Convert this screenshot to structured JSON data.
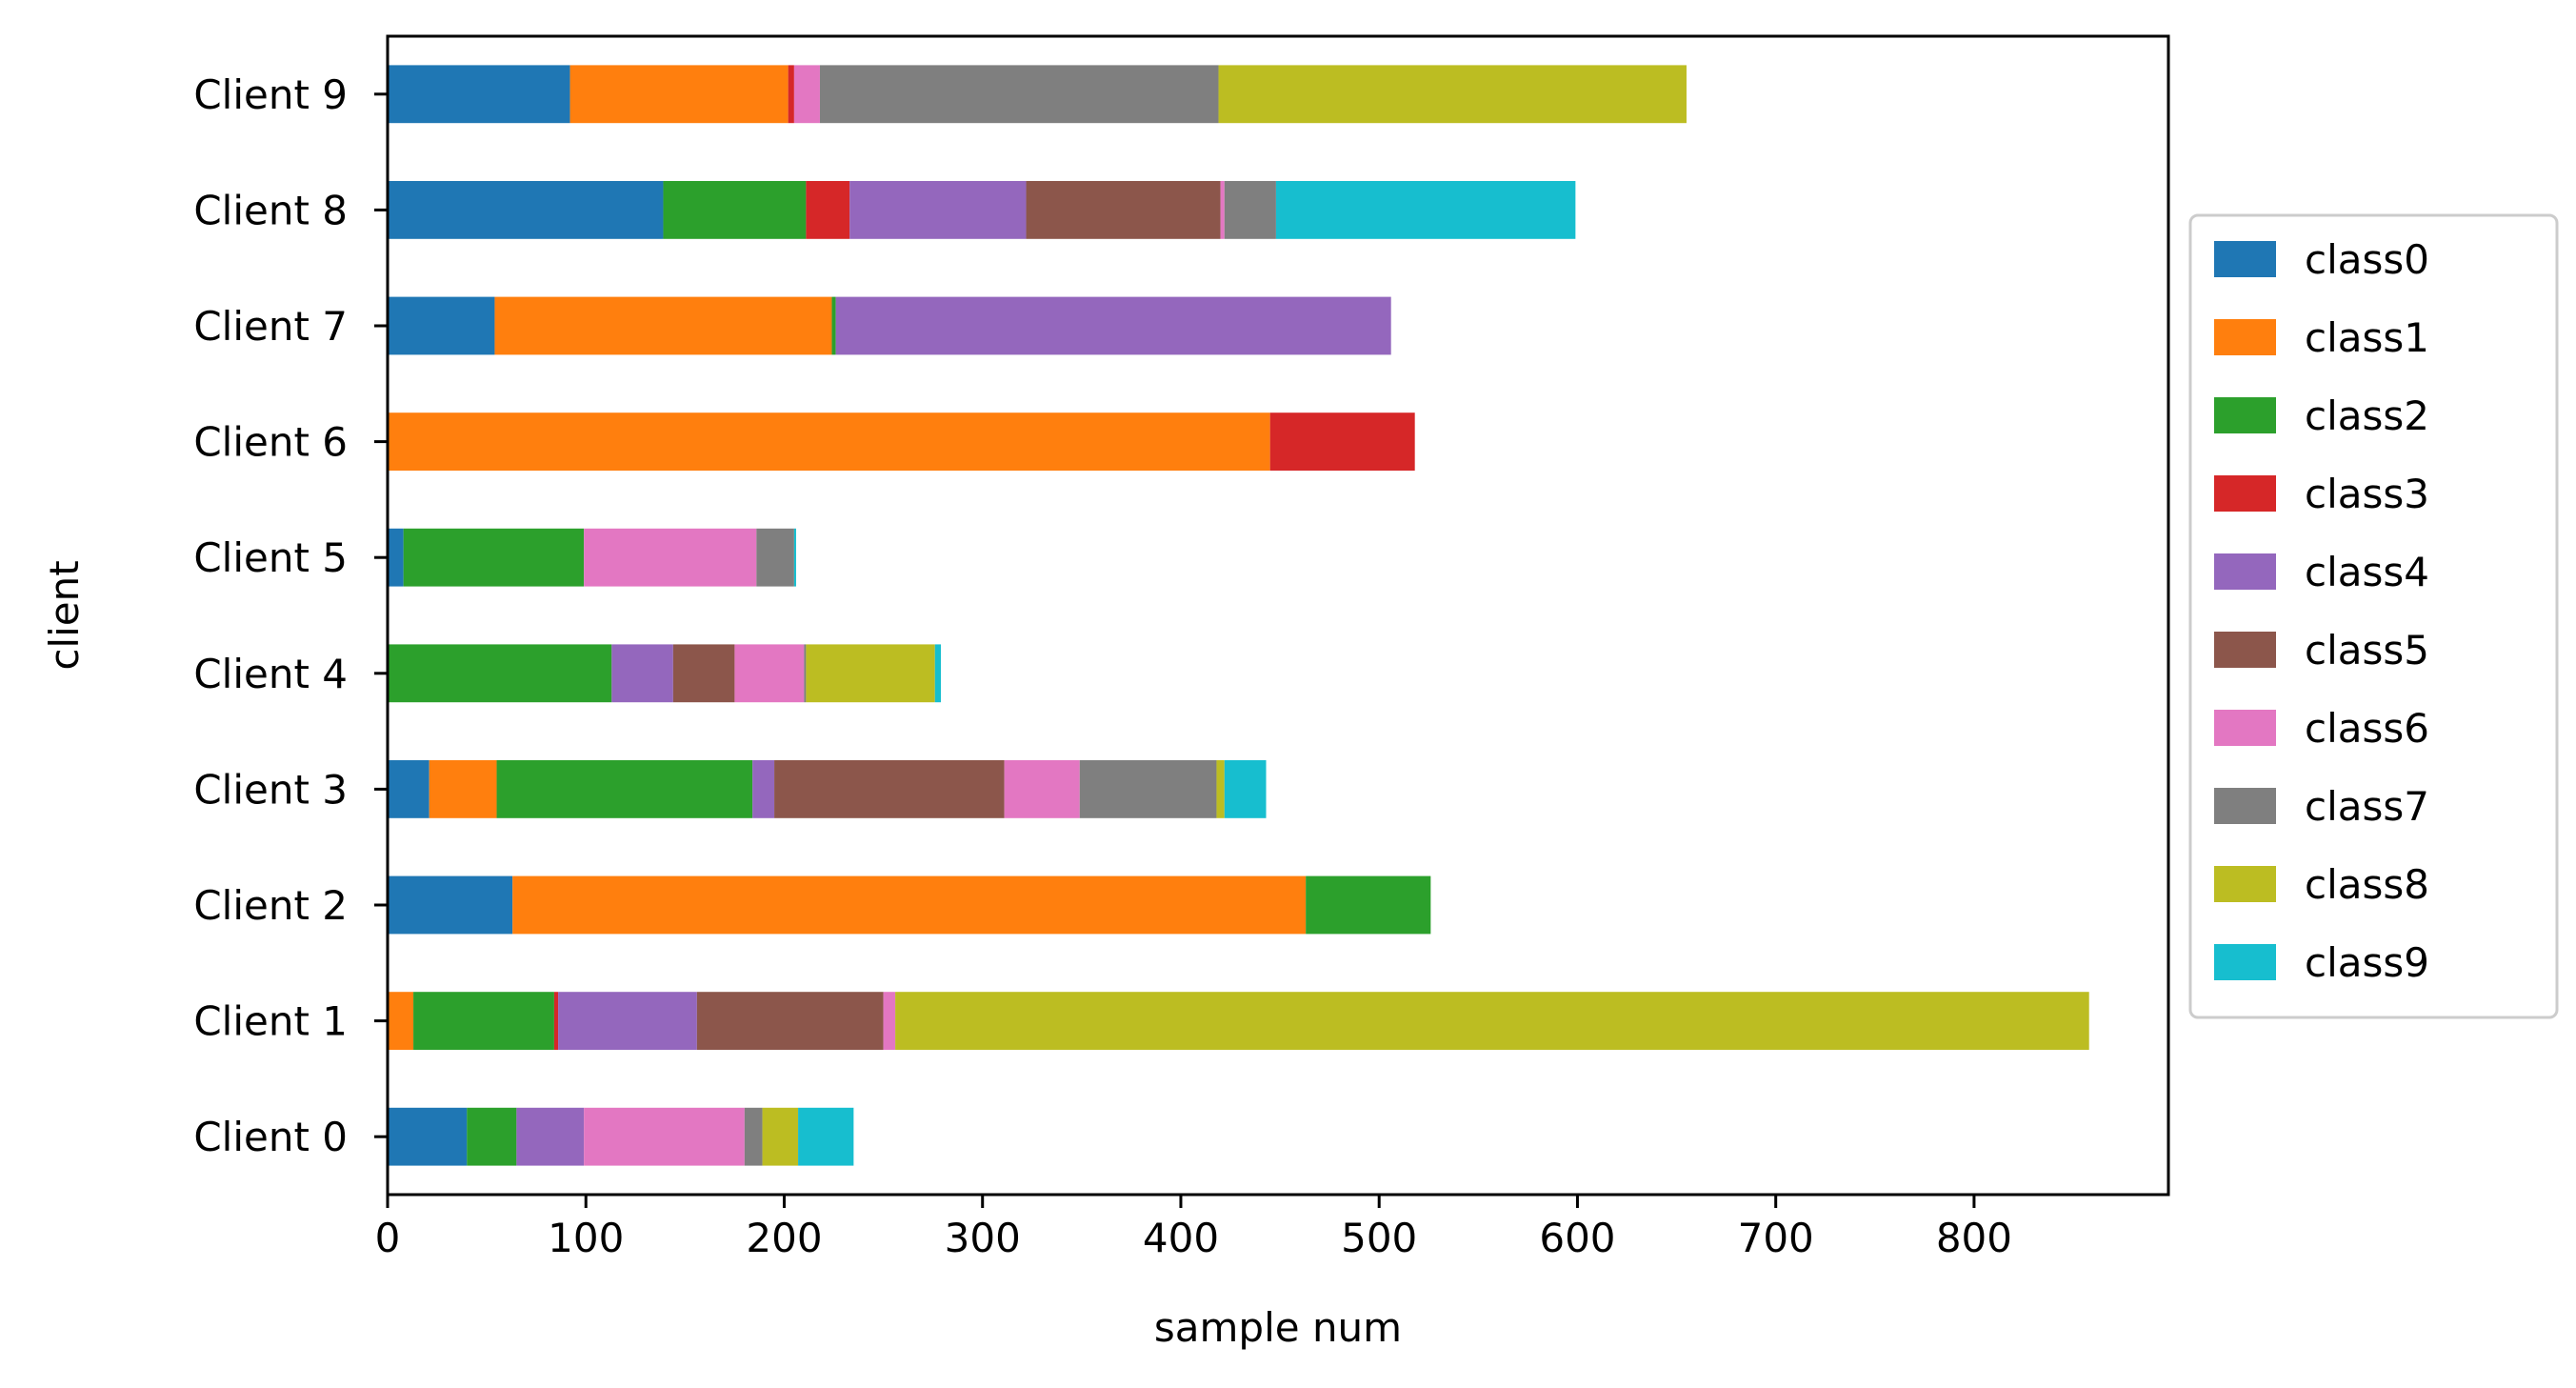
{
  "chart_data": {
    "type": "bar",
    "orientation": "horizontal",
    "stacked": true,
    "xlabel": "sample num",
    "ylabel": "client",
    "xlim": [
      0,
      898
    ],
    "x_ticks": [
      0,
      100,
      200,
      300,
      400,
      500,
      600,
      700,
      800
    ],
    "categories": [
      "Client   0",
      "Client   1",
      "Client   2",
      "Client   3",
      "Client   4",
      "Client   5",
      "Client   6",
      "Client   7",
      "Client   8",
      "Client   9"
    ],
    "grid": false,
    "legend_position": "right",
    "series": [
      {
        "name": "class0",
        "color": "#1f77b4",
        "values": [
          40,
          0,
          63,
          21,
          0,
          8,
          0,
          54,
          139,
          92
        ]
      },
      {
        "name": "class1",
        "color": "#ff7f0e",
        "values": [
          0,
          13,
          400,
          34,
          0,
          0,
          445,
          170,
          0,
          110
        ]
      },
      {
        "name": "class2",
        "color": "#2ca02c",
        "values": [
          25,
          71,
          63,
          129,
          113,
          91,
          0,
          2,
          72,
          0
        ]
      },
      {
        "name": "class3",
        "color": "#d62728",
        "values": [
          0,
          2,
          0,
          0,
          0,
          0,
          73,
          0,
          22,
          3
        ]
      },
      {
        "name": "class4",
        "color": "#9467bd",
        "values": [
          34,
          70,
          0,
          11,
          31,
          0,
          0,
          280,
          89,
          0
        ]
      },
      {
        "name": "class5",
        "color": "#8c564b",
        "values": [
          0,
          94,
          0,
          116,
          31,
          0,
          0,
          0,
          98,
          0
        ]
      },
      {
        "name": "class6",
        "color": "#e377c2",
        "values": [
          81,
          6,
          0,
          38,
          35,
          87,
          0,
          0,
          2,
          13
        ]
      },
      {
        "name": "class7",
        "color": "#7f7f7f",
        "values": [
          9,
          0,
          0,
          69,
          1,
          19,
          0,
          0,
          26,
          201
        ]
      },
      {
        "name": "class8",
        "color": "#bcbd22",
        "values": [
          18,
          602,
          0,
          4,
          65,
          0,
          0,
          0,
          0,
          236
        ]
      },
      {
        "name": "class9",
        "color": "#17becf",
        "values": [
          28,
          0,
          0,
          21,
          3,
          1,
          0,
          0,
          151,
          0
        ]
      }
    ]
  }
}
